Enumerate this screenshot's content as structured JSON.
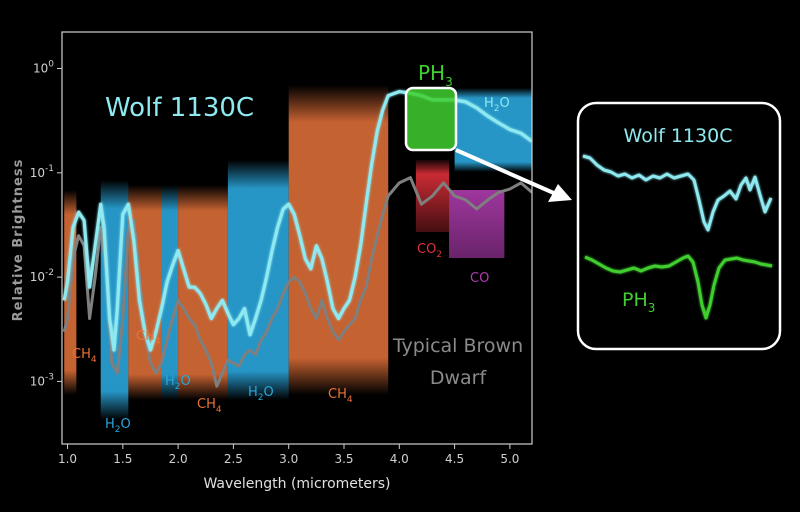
{
  "colors": {
    "background": "#000000",
    "axis": "#cfcfcf",
    "wolf": "#8ee9f0",
    "brown": "#7f7f7f",
    "ph3": "#3fcf2f",
    "ch4": "#e8733a",
    "h2o": "#2aa6dc",
    "co2": "#e0303a",
    "co": "#b03cb0"
  },
  "chart_data": {
    "type": "line",
    "xlabel": "Wavelength (micrometers)",
    "ylabel": "Relative Brightness",
    "xlim": [
      0.95,
      5.2
    ],
    "ylim_log10": [
      -3.6,
      0.35
    ],
    "y_scale": "log",
    "x_ticks": [
      "1.0",
      "1.5",
      "2.0",
      "2.5",
      "3.0",
      "3.5",
      "4.0",
      "4.5",
      "5.0"
    ],
    "x_tick_values": [
      1.0,
      1.5,
      2.0,
      2.5,
      3.0,
      3.5,
      4.0,
      4.5,
      5.0
    ],
    "y_ticks": [
      {
        "base": "10",
        "exp": "0",
        "value": 1
      },
      {
        "base": "10",
        "exp": "-1",
        "value": 0.1
      },
      {
        "base": "10",
        "exp": "-2",
        "value": 0.01
      },
      {
        "base": "10",
        "exp": "-3",
        "value": 0.001
      }
    ],
    "series": [
      {
        "name": "Wolf 1130C",
        "x": [
          0.97,
          1.0,
          1.05,
          1.1,
          1.15,
          1.2,
          1.25,
          1.3,
          1.33,
          1.38,
          1.42,
          1.45,
          1.5,
          1.55,
          1.6,
          1.65,
          1.7,
          1.75,
          1.8,
          1.85,
          1.9,
          1.95,
          2.0,
          2.05,
          2.1,
          2.15,
          2.2,
          2.25,
          2.3,
          2.35,
          2.4,
          2.45,
          2.5,
          2.55,
          2.6,
          2.65,
          2.7,
          2.75,
          2.8,
          2.85,
          2.9,
          2.95,
          3.0,
          3.05,
          3.1,
          3.15,
          3.2,
          3.25,
          3.3,
          3.35,
          3.4,
          3.45,
          3.5,
          3.55,
          3.6,
          3.65,
          3.7,
          3.75,
          3.8,
          3.85,
          3.9,
          4.0,
          4.1,
          4.2,
          4.3,
          4.4,
          4.5,
          4.6,
          4.7,
          4.8,
          4.9,
          5.0,
          5.1,
          5.2
        ],
        "y": [
          0.006,
          0.009,
          0.03,
          0.042,
          0.035,
          0.008,
          0.02,
          0.05,
          0.03,
          0.004,
          0.002,
          0.005,
          0.04,
          0.05,
          0.022,
          0.006,
          0.003,
          0.002,
          0.003,
          0.005,
          0.009,
          0.013,
          0.018,
          0.012,
          0.008,
          0.008,
          0.007,
          0.0055,
          0.004,
          0.005,
          0.006,
          0.0045,
          0.0035,
          0.004,
          0.005,
          0.0028,
          0.004,
          0.006,
          0.01,
          0.018,
          0.03,
          0.045,
          0.05,
          0.04,
          0.025,
          0.015,
          0.012,
          0.02,
          0.015,
          0.009,
          0.005,
          0.004,
          0.005,
          0.006,
          0.01,
          0.02,
          0.05,
          0.12,
          0.25,
          0.4,
          0.55,
          0.6,
          0.58,
          0.55,
          0.5,
          0.5,
          0.5,
          0.48,
          0.42,
          0.35,
          0.3,
          0.26,
          0.24,
          0.2
        ]
      },
      {
        "name": "Typical Brown Dwarf",
        "x": [
          0.97,
          1.0,
          1.05,
          1.1,
          1.15,
          1.2,
          1.25,
          1.3,
          1.35,
          1.4,
          1.45,
          1.5,
          1.55,
          1.6,
          1.65,
          1.7,
          1.75,
          1.8,
          1.85,
          1.9,
          1.95,
          2.0,
          2.05,
          2.1,
          2.15,
          2.2,
          2.25,
          2.3,
          2.35,
          2.4,
          2.45,
          2.5,
          2.55,
          2.6,
          2.65,
          2.7,
          2.75,
          2.8,
          2.85,
          2.9,
          2.95,
          3.0,
          3.05,
          3.1,
          3.15,
          3.2,
          3.25,
          3.3,
          3.35,
          3.4,
          3.45,
          3.5,
          3.55,
          3.6,
          3.65,
          3.7,
          3.75,
          3.8,
          3.85,
          3.9,
          4.0,
          4.1,
          4.2,
          4.3,
          4.4,
          4.5,
          4.6,
          4.7,
          4.8,
          4.9,
          5.0,
          5.1,
          5.2
        ],
        "y": [
          0.003,
          0.004,
          0.015,
          0.025,
          0.02,
          0.004,
          0.01,
          0.03,
          0.012,
          0.0015,
          0.0012,
          0.004,
          0.03,
          0.035,
          0.01,
          0.003,
          0.0015,
          0.0012,
          0.0015,
          0.0025,
          0.004,
          0.006,
          0.005,
          0.004,
          0.0035,
          0.0025,
          0.002,
          0.0015,
          0.0009,
          0.0012,
          0.0016,
          0.0015,
          0.0014,
          0.0018,
          0.002,
          0.0018,
          0.0025,
          0.003,
          0.004,
          0.005,
          0.007,
          0.009,
          0.01,
          0.009,
          0.007,
          0.005,
          0.004,
          0.006,
          0.004,
          0.003,
          0.0025,
          0.003,
          0.0035,
          0.004,
          0.006,
          0.008,
          0.015,
          0.025,
          0.04,
          0.06,
          0.08,
          0.09,
          0.05,
          0.06,
          0.08,
          0.06,
          0.055,
          0.045,
          0.055,
          0.065,
          0.07,
          0.08,
          0.065
        ]
      }
    ],
    "bands": [
      {
        "molecule": "CH4",
        "x": [
          0.97,
          1.08
        ],
        "label": "CH",
        "sub": "4"
      },
      {
        "molecule": "H2O",
        "x": [
          1.3,
          1.55
        ],
        "label": "H",
        "sub": "2",
        "suffix": "O"
      },
      {
        "molecule": "CH4",
        "x": [
          1.55,
          1.85
        ],
        "label": "CH",
        "sub": "4"
      },
      {
        "molecule": "H2O",
        "x": [
          1.85,
          2.0
        ],
        "label": "H",
        "sub": "2",
        "suffix": "O"
      },
      {
        "molecule": "CH4",
        "x": [
          2.0,
          2.45
        ],
        "label": "CH",
        "sub": "4"
      },
      {
        "molecule": "H2O",
        "x": [
          2.45,
          3.0
        ],
        "label": "H",
        "sub": "2",
        "suffix": "O"
      },
      {
        "molecule": "CH4",
        "x": [
          3.0,
          3.9
        ],
        "label": "CH",
        "sub": "4"
      },
      {
        "molecule": "CO2",
        "x": [
          4.15,
          4.45
        ],
        "label": "CO",
        "sub": "2"
      },
      {
        "molecule": "CO",
        "x": [
          4.45,
          4.95
        ],
        "label": "CO",
        "sub": ""
      },
      {
        "molecule": "H2O",
        "x": [
          4.5,
          5.2
        ],
        "label": "H",
        "sub": "2",
        "suffix": "O"
      },
      {
        "molecule": "PH3",
        "x": [
          4.0,
          4.45
        ],
        "label": "PH",
        "sub": "3"
      }
    ]
  },
  "labels": {
    "wolf_title": "Wolf 1130C",
    "brown_line1": "Typical Brown",
    "brown_line2": "Dwarf",
    "ph3_top": "PH",
    "ph3_top_sub": "3"
  },
  "inset": {
    "title": "Wolf 1130C",
    "ph3_label": "PH",
    "ph3_sub": "3"
  }
}
